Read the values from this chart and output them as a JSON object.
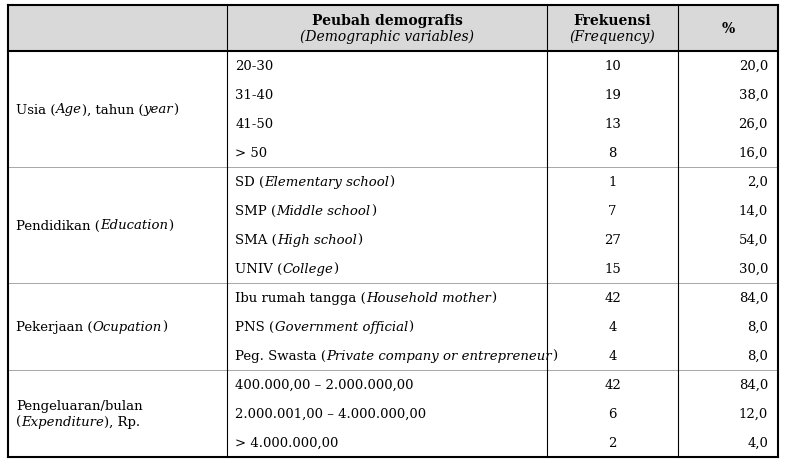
{
  "sections": [
    {
      "cat_normal": "Usia (",
      "cat_italic": "Age",
      "cat_after": "), tahun (",
      "cat_italic2": "year",
      "cat_after2": ")",
      "cat_line2": "",
      "items": [
        {
          "label": "20-30",
          "freq": "10",
          "pct": "20,0"
        },
        {
          "label": "31-40",
          "freq": "19",
          "pct": "38,0"
        },
        {
          "label": "41-50",
          "freq": "13",
          "pct": "26,0"
        },
        {
          "label": "> 50",
          "freq": "8",
          "pct": "16,0"
        }
      ]
    },
    {
      "cat_normal": "Pendidikan (",
      "cat_italic": "Education",
      "cat_after": ")",
      "cat_italic2": "",
      "cat_after2": "",
      "cat_line2": "",
      "items": [
        {
          "label_normal": "SD (",
          "label_italic": "Elementary school",
          "label_after": ")",
          "freq": "1",
          "pct": "2,0"
        },
        {
          "label_normal": "SMP (",
          "label_italic": "Middle school",
          "label_after": ")",
          "freq": "7",
          "pct": "14,0"
        },
        {
          "label_normal": "SMA (",
          "label_italic": "High school",
          "label_after": ")",
          "freq": "27",
          "pct": "54,0"
        },
        {
          "label_normal": "UNIV (",
          "label_italic": "College",
          "label_after": ")",
          "freq": "15",
          "pct": "30,0"
        }
      ]
    },
    {
      "cat_normal": "Pekerjaan (",
      "cat_italic": "Ocupation",
      "cat_after": ")",
      "cat_italic2": "",
      "cat_after2": "",
      "cat_line2": "",
      "items": [
        {
          "label_normal": "Ibu rumah tangga (",
          "label_italic": "Household mother",
          "label_after": ")",
          "freq": "42",
          "pct": "84,0"
        },
        {
          "label_normal": "PNS (",
          "label_italic": "Government official",
          "label_after": ")",
          "freq": "4",
          "pct": "8,0"
        },
        {
          "label_normal": "Peg. Swasta (",
          "label_italic": "Private company or entrepreneur",
          "label_after": ")",
          "freq": "4",
          "pct": "8,0"
        }
      ]
    },
    {
      "cat_normal": "Pengeluaran/bulan",
      "cat_italic": "",
      "cat_after": "",
      "cat_italic2": "",
      "cat_after2": "",
      "cat_line2_italic": "Expenditure",
      "cat_line2_pre": "(",
      "cat_line2_after": "), Rp.",
      "items": [
        {
          "label": "400.000,00 – 2.000.000,00",
          "freq": "42",
          "pct": "84,0"
        },
        {
          "label": "2.000.001,00 – 4.000.000,00",
          "freq": "6",
          "pct": "12,0"
        },
        {
          "label": "> 4.000.000,00",
          "freq": "2",
          "pct": "4,0"
        }
      ]
    }
  ],
  "header": {
    "col1_bold": "Peubah demografis",
    "col1_italic": "(Demographic variables)",
    "col2_bold": "Frekuensi",
    "col2_italic": "(Frequency)",
    "col3": "%"
  },
  "bg_header": "#d9d9d9",
  "bg_white": "#ffffff",
  "border_color": "#000000",
  "font_size": 9.5,
  "figsize": [
    7.86,
    4.64
  ],
  "dpi": 100
}
